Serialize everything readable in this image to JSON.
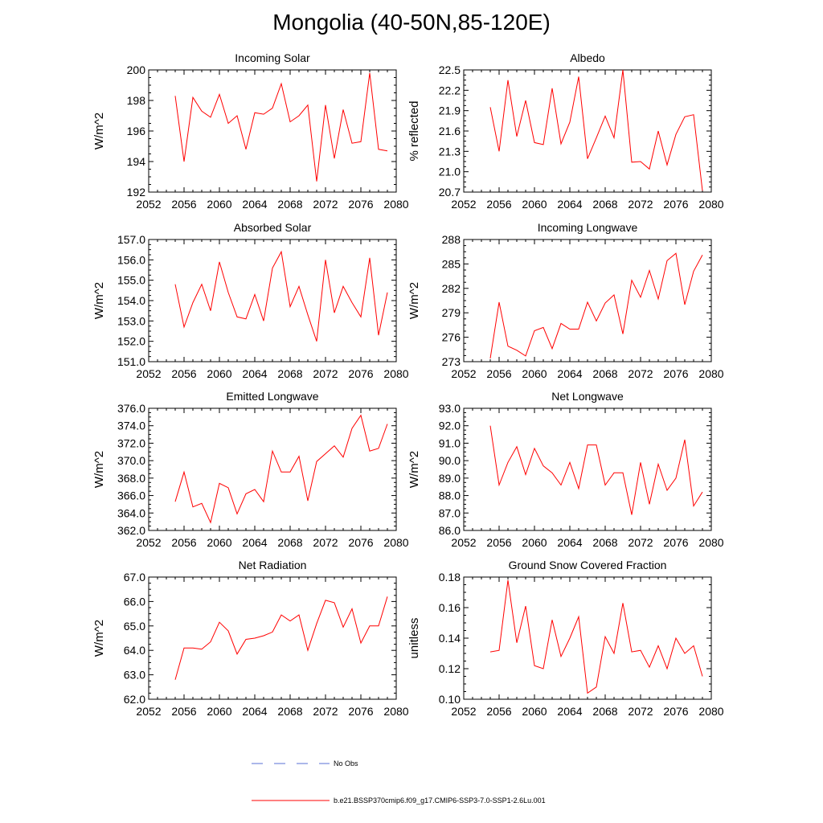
{
  "page": {
    "title": "Mongolia (40-50N,85-120E)",
    "legend": [
      {
        "label": "No Obs",
        "color": "#5a6fd6",
        "style": "dashed"
      },
      {
        "label": "b.e21.BSSP370cmip6.f09_g17.CMIP6-SSP3-7.0-SSP1-2.6Lu.001",
        "color": "#ff0000",
        "style": "solid"
      }
    ]
  },
  "chart_data": [
    {
      "type": "line",
      "title": "Incoming Solar",
      "ylabel": "W/m^2",
      "xlabel": "",
      "xlim": [
        2052,
        2080
      ],
      "xticks": [
        "2052",
        "2056",
        "2060",
        "2064",
        "2068",
        "2072",
        "2076",
        "2080"
      ],
      "ylim": [
        192,
        200
      ],
      "yticks": [
        "192",
        "194",
        "196",
        "198",
        "200"
      ],
      "series": [
        {
          "color": "#ff0000",
          "x": [
            2055,
            2056,
            2057,
            2058,
            2059,
            2060,
            2061,
            2062,
            2063,
            2064,
            2065,
            2066,
            2067,
            2068,
            2069,
            2070,
            2071,
            2072,
            2073,
            2074,
            2075,
            2076,
            2077,
            2078,
            2079
          ],
          "y": [
            198.3,
            194.0,
            198.2,
            197.3,
            196.9,
            198.4,
            196.5,
            197.0,
            194.8,
            197.2,
            197.1,
            197.5,
            199.1,
            196.6,
            197.0,
            197.7,
            192.7,
            197.7,
            194.2,
            197.4,
            195.2,
            195.3,
            199.8,
            194.8,
            194.7
          ]
        }
      ]
    },
    {
      "type": "line",
      "title": "Albedo",
      "ylabel": "% reflected",
      "xlabel": "",
      "xlim": [
        2052,
        2080
      ],
      "xticks": [
        "2052",
        "2056",
        "2060",
        "2064",
        "2068",
        "2072",
        "2076",
        "2080"
      ],
      "ylim": [
        20.7,
        22.5
      ],
      "yticks": [
        "20.7",
        "21.0",
        "21.3",
        "21.6",
        "21.9",
        "22.2",
        "22.5"
      ],
      "series": [
        {
          "color": "#ff0000",
          "x": [
            2055,
            2056,
            2057,
            2058,
            2059,
            2060,
            2061,
            2062,
            2063,
            2064,
            2065,
            2066,
            2067,
            2068,
            2069,
            2070,
            2071,
            2072,
            2073,
            2074,
            2075,
            2076,
            2077,
            2078,
            2079
          ],
          "y": [
            21.95,
            21.3,
            22.35,
            21.52,
            22.05,
            21.43,
            21.4,
            22.23,
            21.41,
            21.73,
            22.4,
            21.19,
            21.5,
            21.82,
            21.5,
            22.5,
            21.14,
            21.15,
            21.04,
            21.6,
            21.1,
            21.55,
            21.81,
            21.84,
            20.72
          ]
        }
      ]
    },
    {
      "type": "line",
      "title": "Absorbed Solar",
      "ylabel": "W/m^2",
      "xlabel": "",
      "xlim": [
        2052,
        2080
      ],
      "xticks": [
        "2052",
        "2056",
        "2060",
        "2064",
        "2068",
        "2072",
        "2076",
        "2080"
      ],
      "ylim": [
        151.0,
        157.0
      ],
      "yticks": [
        "151.0",
        "152.0",
        "153.0",
        "154.0",
        "155.0",
        "156.0",
        "157.0"
      ],
      "series": [
        {
          "color": "#ff0000",
          "x": [
            2055,
            2056,
            2057,
            2058,
            2059,
            2060,
            2061,
            2062,
            2063,
            2064,
            2065,
            2066,
            2067,
            2068,
            2069,
            2070,
            2071,
            2072,
            2073,
            2074,
            2075,
            2076,
            2077,
            2078,
            2079
          ],
          "y": [
            154.8,
            152.7,
            153.9,
            154.8,
            153.5,
            155.9,
            154.4,
            153.2,
            153.1,
            154.3,
            153.0,
            155.6,
            156.4,
            153.7,
            154.7,
            153.3,
            152.0,
            156.0,
            153.4,
            154.7,
            153.9,
            153.2,
            156.1,
            152.3,
            154.4
          ]
        }
      ]
    },
    {
      "type": "line",
      "title": "Incoming Longwave",
      "ylabel": "W/m^2",
      "xlabel": "",
      "xlim": [
        2052,
        2080
      ],
      "xticks": [
        "2052",
        "2056",
        "2060",
        "2064",
        "2068",
        "2072",
        "2076",
        "2080"
      ],
      "ylim": [
        273,
        288
      ],
      "yticks": [
        "273",
        "276",
        "279",
        "282",
        "285",
        "288"
      ],
      "series": [
        {
          "color": "#ff0000",
          "x": [
            2055,
            2056,
            2057,
            2058,
            2059,
            2060,
            2061,
            2062,
            2063,
            2064,
            2065,
            2066,
            2067,
            2068,
            2069,
            2070,
            2071,
            2072,
            2073,
            2074,
            2075,
            2076,
            2077,
            2078,
            2079
          ],
          "y": [
            273.4,
            280.3,
            274.9,
            274.4,
            273.7,
            276.8,
            277.2,
            274.6,
            277.7,
            277.0,
            277.0,
            280.3,
            278.0,
            280.2,
            281.2,
            276.4,
            283.0,
            280.9,
            284.2,
            280.7,
            285.4,
            286.3,
            280.0,
            284.1,
            286.1
          ]
        }
      ]
    },
    {
      "type": "line",
      "title": "Emitted Longwave",
      "ylabel": "W/m^2",
      "xlabel": "",
      "xlim": [
        2052,
        2080
      ],
      "xticks": [
        "2052",
        "2056",
        "2060",
        "2064",
        "2068",
        "2072",
        "2076",
        "2080"
      ],
      "ylim": [
        362.0,
        376.0
      ],
      "yticks": [
        "362.0",
        "364.0",
        "366.0",
        "368.0",
        "370.0",
        "372.0",
        "374.0",
        "376.0"
      ],
      "series": [
        {
          "color": "#ff0000",
          "x": [
            2055,
            2056,
            2057,
            2058,
            2059,
            2060,
            2061,
            2062,
            2063,
            2064,
            2065,
            2066,
            2067,
            2068,
            2069,
            2070,
            2071,
            2072,
            2073,
            2074,
            2075,
            2076,
            2077,
            2078,
            2079
          ],
          "y": [
            365.3,
            368.7,
            364.7,
            365.1,
            362.9,
            367.4,
            366.9,
            363.9,
            366.2,
            366.7,
            365.3,
            371.1,
            368.7,
            368.7,
            370.5,
            365.4,
            369.9,
            370.8,
            371.7,
            370.4,
            373.7,
            375.2,
            371.1,
            371.4,
            374.2
          ]
        }
      ]
    },
    {
      "type": "line",
      "title": "Net Longwave",
      "ylabel": "W/m^2",
      "xlabel": "",
      "xlim": [
        2052,
        2080
      ],
      "xticks": [
        "2052",
        "2056",
        "2060",
        "2064",
        "2068",
        "2072",
        "2076",
        "2080"
      ],
      "ylim": [
        86.0,
        93.0
      ],
      "yticks": [
        "86.0",
        "87.0",
        "88.0",
        "89.0",
        "90.0",
        "91.0",
        "92.0",
        "93.0"
      ],
      "series": [
        {
          "color": "#ff0000",
          "x": [
            2055,
            2056,
            2057,
            2058,
            2059,
            2060,
            2061,
            2062,
            2063,
            2064,
            2065,
            2066,
            2067,
            2068,
            2069,
            2070,
            2071,
            2072,
            2073,
            2074,
            2075,
            2076,
            2077,
            2078,
            2079
          ],
          "y": [
            92.0,
            88.6,
            89.9,
            90.8,
            89.2,
            90.7,
            89.7,
            89.3,
            88.6,
            89.9,
            88.4,
            90.9,
            90.9,
            88.6,
            89.3,
            89.3,
            86.9,
            89.9,
            87.5,
            89.8,
            88.3,
            89.0,
            91.2,
            87.4,
            88.2
          ]
        }
      ]
    },
    {
      "type": "line",
      "title": "Net Radiation",
      "ylabel": "W/m^2",
      "xlabel": "",
      "xlim": [
        2052,
        2080
      ],
      "xticks": [
        "2052",
        "2056",
        "2060",
        "2064",
        "2068",
        "2072",
        "2076",
        "2080"
      ],
      "ylim": [
        62.0,
        67.0
      ],
      "yticks": [
        "62.0",
        "63.0",
        "64.0",
        "65.0",
        "66.0",
        "67.0"
      ],
      "series": [
        {
          "color": "#ff0000",
          "x": [
            2055,
            2056,
            2057,
            2058,
            2059,
            2060,
            2061,
            2062,
            2063,
            2064,
            2065,
            2066,
            2067,
            2068,
            2069,
            2070,
            2071,
            2072,
            2073,
            2074,
            2075,
            2076,
            2077,
            2078,
            2079
          ],
          "y": [
            62.8,
            64.1,
            64.1,
            64.05,
            64.35,
            65.15,
            64.8,
            63.85,
            64.45,
            64.5,
            64.6,
            64.75,
            65.45,
            65.2,
            65.45,
            64.0,
            65.1,
            66.05,
            65.95,
            64.95,
            65.7,
            64.3,
            65.0,
            65.0,
            66.2
          ]
        }
      ]
    },
    {
      "type": "line",
      "title": "Ground Snow Covered Fraction",
      "ylabel": "unitless",
      "xlabel": "",
      "xlim": [
        2052,
        2080
      ],
      "xticks": [
        "2052",
        "2056",
        "2060",
        "2064",
        "2068",
        "2072",
        "2076",
        "2080"
      ],
      "ylim": [
        0.1,
        0.18
      ],
      "yticks": [
        "0.10",
        "0.12",
        "0.14",
        "0.16",
        "0.18"
      ],
      "series": [
        {
          "color": "#ff0000",
          "x": [
            2055,
            2056,
            2057,
            2058,
            2059,
            2060,
            2061,
            2062,
            2063,
            2064,
            2065,
            2066,
            2067,
            2068,
            2069,
            2070,
            2071,
            2072,
            2073,
            2074,
            2075,
            2076,
            2077,
            2078,
            2079
          ],
          "y": [
            0.131,
            0.132,
            0.178,
            0.137,
            0.161,
            0.122,
            0.12,
            0.152,
            0.128,
            0.14,
            0.154,
            0.104,
            0.108,
            0.141,
            0.13,
            0.163,
            0.131,
            0.132,
            0.121,
            0.135,
            0.12,
            0.14,
            0.13,
            0.135,
            0.115
          ]
        }
      ]
    }
  ]
}
